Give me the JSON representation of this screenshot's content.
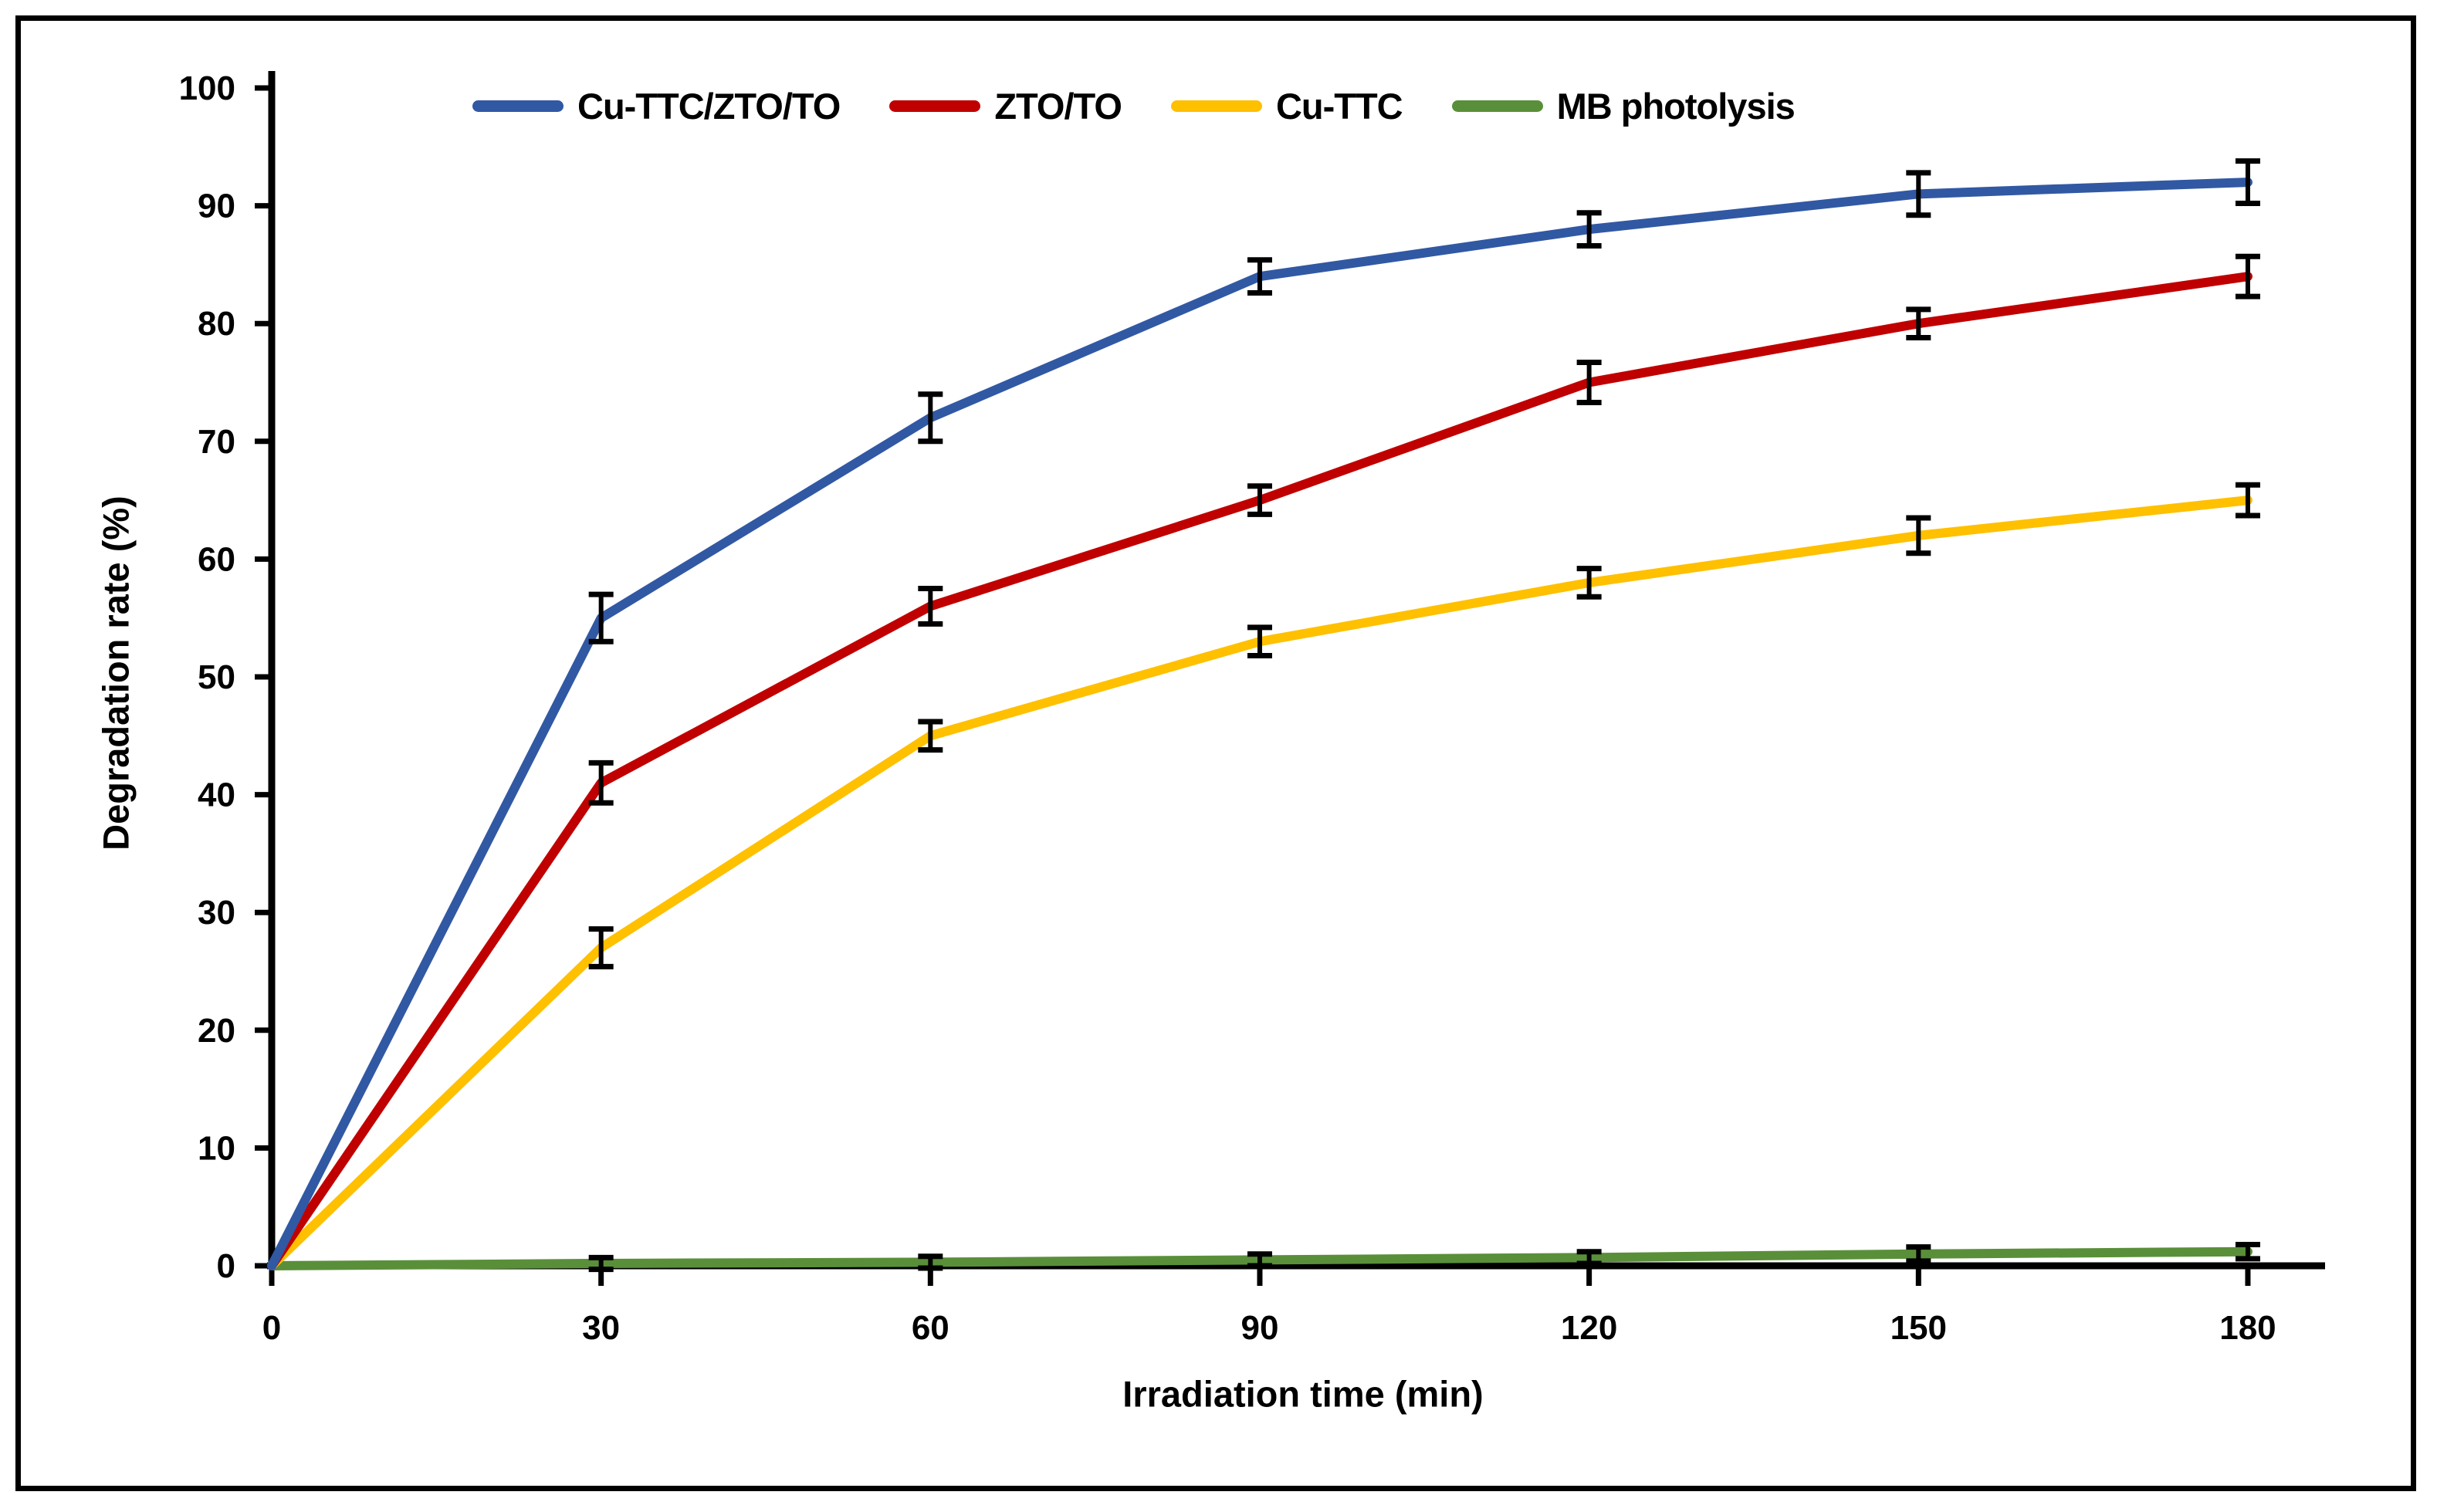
{
  "figure": {
    "background": "#ffffff",
    "frame_color": "#000000"
  },
  "chart_data": {
    "type": "line",
    "title": "",
    "xlabel": "Irradiation time (min)",
    "ylabel": "Degradation rate (%)",
    "x": [
      0,
      30,
      60,
      90,
      120,
      150,
      180
    ],
    "xlim": [
      0,
      187
    ],
    "ylim": [
      0,
      100
    ],
    "y_tick_step": 10,
    "x_tick_labels": [
      "0",
      "30",
      "60",
      "90",
      "120",
      "150",
      "180"
    ],
    "y_tick_labels": [
      "0",
      "10",
      "20",
      "30",
      "40",
      "50",
      "60",
      "70",
      "80",
      "90",
      "100"
    ],
    "grid": false,
    "legend_position": "top",
    "axis_color": "#000000",
    "error_bar_color": "#000000",
    "series": [
      {
        "name": "Cu-TTC/ZTO/TO",
        "color": "#3158A3",
        "values": [
          0,
          55,
          72,
          84,
          88,
          91,
          92
        ],
        "errors": [
          0,
          2.0,
          2.0,
          1.4,
          1.4,
          1.8,
          1.8
        ]
      },
      {
        "name": "ZTO/TO",
        "color": "#C00000",
        "values": [
          0,
          41,
          56,
          65,
          75,
          80,
          84
        ],
        "errors": [
          0,
          1.7,
          1.5,
          1.2,
          1.7,
          1.2,
          1.7
        ]
      },
      {
        "name": "Cu-TTC",
        "color": "#FFC000",
        "values": [
          0,
          27,
          45,
          53,
          58,
          62,
          65
        ],
        "errors": [
          0,
          1.6,
          1.2,
          1.2,
          1.2,
          1.5,
          1.3
        ]
      },
      {
        "name": "MB photolysis",
        "color": "#5A8F3A",
        "values": [
          0,
          0.2,
          0.3,
          0.5,
          0.7,
          1.0,
          1.2
        ],
        "errors": [
          0,
          0.5,
          0.5,
          0.5,
          0.5,
          0.6,
          0.6
        ]
      }
    ]
  }
}
